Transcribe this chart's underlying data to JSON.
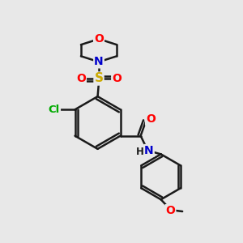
{
  "bg_color": "#e8e8e8",
  "bond_color": "#1a1a1a",
  "bond_width": 1.8,
  "atom_colors": {
    "O": "#ff0000",
    "N": "#0000cc",
    "S": "#ccaa00",
    "Cl": "#00aa00",
    "C": "#1a1a1a",
    "H": "#1a1a1a"
  },
  "figsize": [
    3.0,
    3.0
  ],
  "dpi": 100
}
